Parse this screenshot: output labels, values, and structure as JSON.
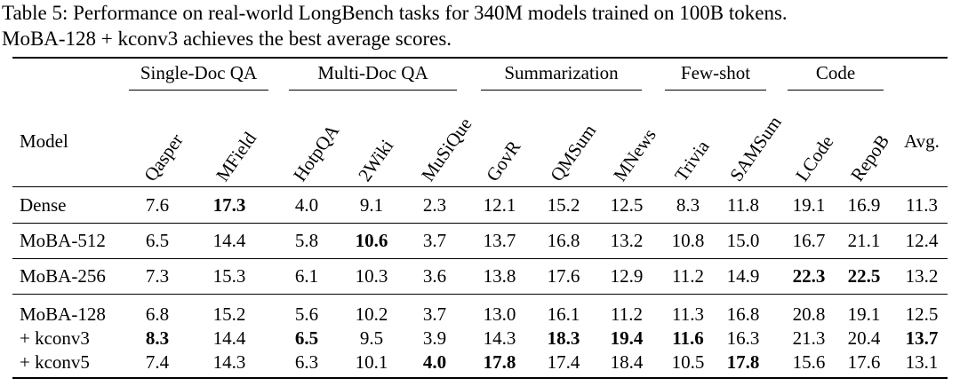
{
  "caption": {
    "line1": "Table 5: Performance on real-world LongBench tasks for 340M models trained on 100B tokens.",
    "line2": "MoBA-128 + kconv3 achieves the best average scores."
  },
  "header": {
    "model_label": "Model",
    "avg_label": "Avg.",
    "groups": [
      "Single-Doc QA",
      "Multi-Doc QA",
      "Summarization",
      "Few-shot",
      "Code"
    ],
    "columns": [
      "Qasper",
      "MField",
      "HotpQA",
      "2Wiki",
      "MuSiQue",
      "GovR",
      "QMSum",
      "MNews",
      "Trivia",
      "SAMSum",
      "LCode",
      "RepoB"
    ]
  },
  "rows": [
    {
      "model": "Dense",
      "values": [
        "7.6",
        "17.3",
        "4.0",
        "9.1",
        "2.3",
        "12.1",
        "15.2",
        "12.5",
        "8.3",
        "11.8",
        "19.1",
        "16.9",
        "11.3"
      ],
      "bold": [
        1
      ]
    },
    {
      "model": "MoBA-512",
      "values": [
        "6.5",
        "14.4",
        "5.8",
        "10.6",
        "3.7",
        "13.7",
        "16.8",
        "13.2",
        "10.8",
        "15.0",
        "16.7",
        "21.1",
        "12.4"
      ],
      "bold": [
        3
      ]
    },
    {
      "model": "MoBA-256",
      "values": [
        "7.3",
        "15.3",
        "6.1",
        "10.3",
        "3.6",
        "13.8",
        "17.6",
        "12.9",
        "11.2",
        "14.9",
        "22.3",
        "22.5",
        "13.2"
      ],
      "bold": [
        10,
        11
      ]
    },
    {
      "model": "MoBA-128",
      "values": [
        "6.8",
        "15.2",
        "5.6",
        "10.2",
        "3.7",
        "13.0",
        "16.1",
        "11.2",
        "11.3",
        "16.8",
        "20.8",
        "19.1",
        "12.5"
      ],
      "bold": []
    },
    {
      "model": "+ kconv3",
      "values": [
        "8.3",
        "14.4",
        "6.5",
        "9.5",
        "3.9",
        "14.3",
        "18.3",
        "19.4",
        "11.6",
        "16.3",
        "21.3",
        "20.4",
        "13.7"
      ],
      "bold": [
        0,
        2,
        6,
        7,
        8,
        12
      ]
    },
    {
      "model": "+ kconv5",
      "values": [
        "7.4",
        "14.3",
        "6.3",
        "10.1",
        "4.0",
        "17.8",
        "17.4",
        "18.4",
        "10.5",
        "17.8",
        "15.6",
        "17.6",
        "13.1"
      ],
      "bold": [
        4,
        5,
        9
      ]
    }
  ]
}
